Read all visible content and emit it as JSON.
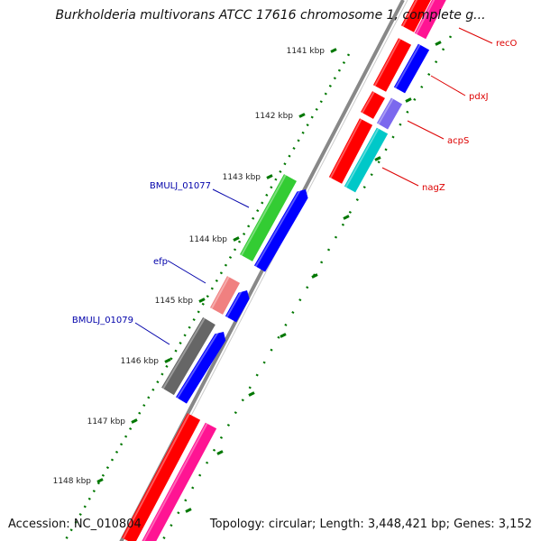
{
  "title": "Burkholderia multivorans ATCC 17616 chromosome 1, complete g...",
  "accession": "Accession: NC_010804",
  "summary": "Topology: circular; Length: 3,448,421 bp; Genes: 3,152",
  "ticks": [
    "1141 kbp",
    "1142 kbp",
    "1143 kbp",
    "1144 kbp",
    "1145 kbp",
    "1146 kbp",
    "1147 kbp",
    "1148 kbp"
  ],
  "genes": [
    {
      "name": "recO",
      "color": "#dd0000"
    },
    {
      "name": "pdxJ",
      "color": "#dd0000"
    },
    {
      "name": "acpS",
      "color": "#dd0000"
    },
    {
      "name": "nagZ",
      "color": "#dd0000"
    },
    {
      "name": "BMULJ_01077",
      "color": "#0000aa"
    },
    {
      "name": "efp",
      "color": "#0000aa"
    },
    {
      "name": "BMULJ_01079",
      "color": "#0000aa"
    }
  ],
  "feature_colors": {
    "red": "#ff0000",
    "blue": "#0000ff",
    "pink": "#ff1493",
    "green": "#33cc33",
    "cyan": "#00c8c8",
    "purple": "#7b68ee",
    "salmon": "#f08080",
    "gray": "#666666",
    "backbone": "#888888",
    "tick": "#007700"
  }
}
